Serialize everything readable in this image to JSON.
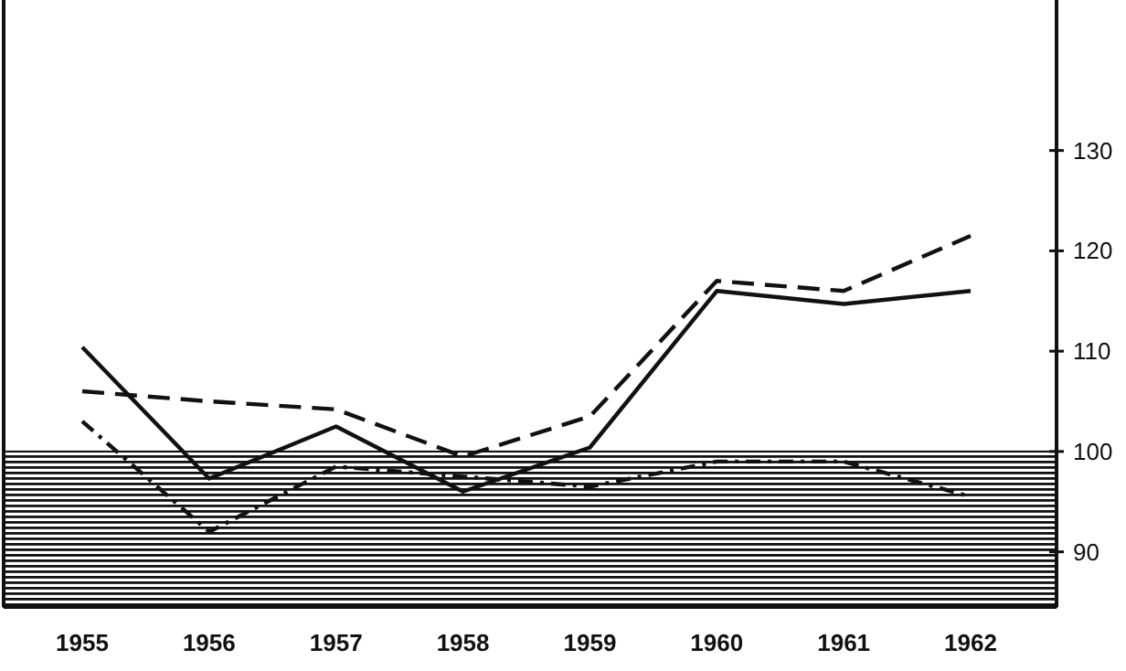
{
  "chart_data": {
    "type": "line",
    "categories": [
      "1955",
      "1956",
      "1957",
      "1958",
      "1959",
      "1960",
      "1961",
      "1962"
    ],
    "series": [
      {
        "color": "#111111",
        "line_style": "solid",
        "values": [
          110.4,
          97.3,
          102.5,
          96,
          100.4,
          116,
          114.7,
          116
        ]
      },
      {
        "color": "#111111",
        "line_style": "dashed",
        "values": [
          106,
          105,
          104.2,
          99.5,
          103.5,
          117,
          116,
          121.5
        ]
      },
      {
        "color": "#111111",
        "line_style": "dotted",
        "values": [
          103,
          92,
          98.5,
          97.5,
          96.5,
          99,
          99,
          95.5
        ]
      }
    ],
    "ylim": [
      84.5,
      145
    ],
    "yticks": [
      90,
      100,
      110,
      120,
      130
    ],
    "bands": [
      {
        "axis": "y",
        "from": 84.5,
        "to": 100,
        "color": "#111111"
      }
    ],
    "grid": false,
    "marker": "none"
  }
}
